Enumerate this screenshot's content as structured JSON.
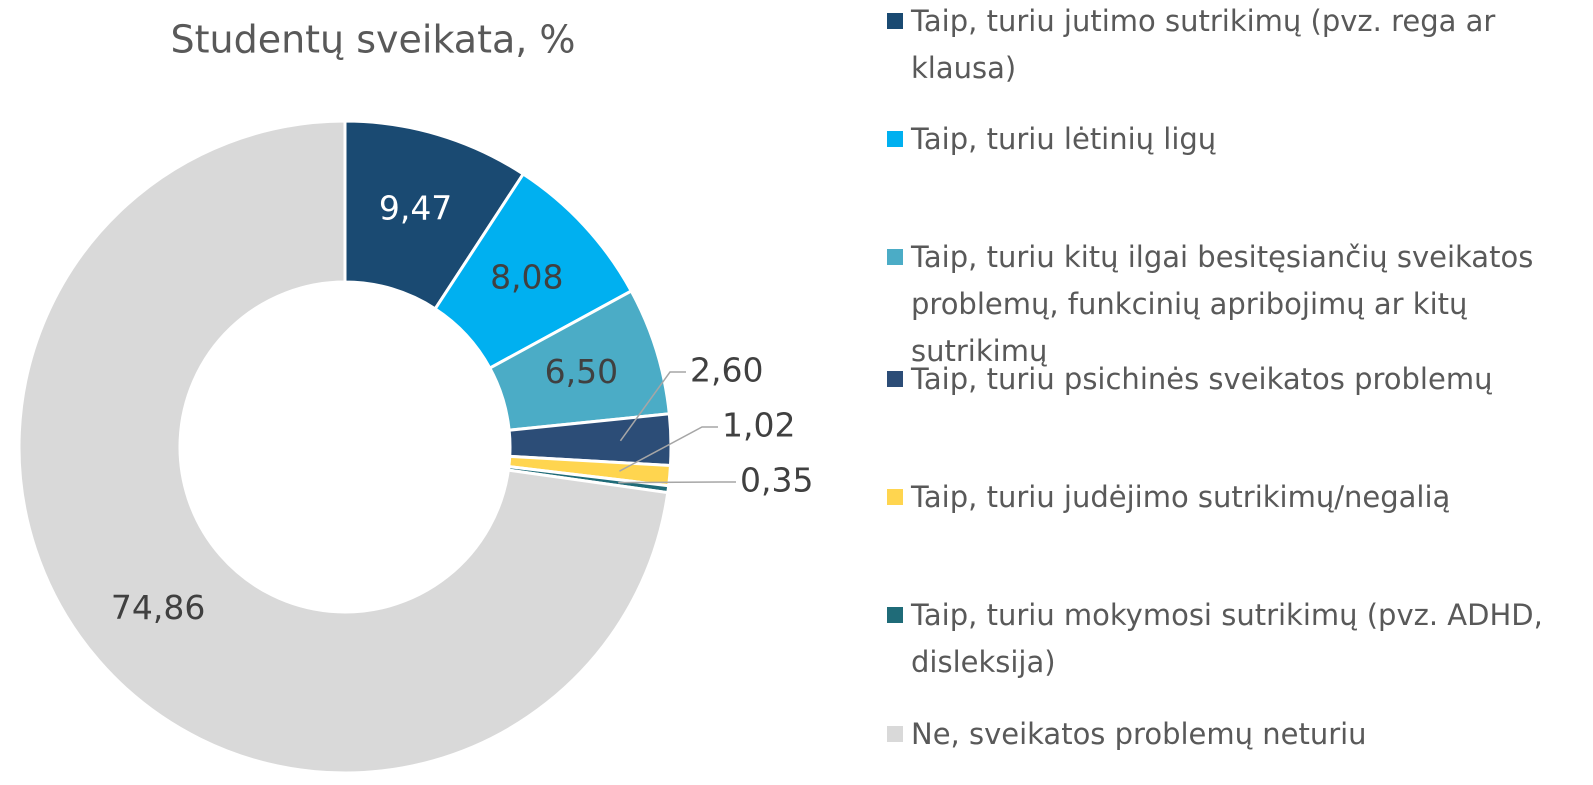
{
  "chart_data": {
    "type": "donut",
    "title": "Studentų sveikata, %",
    "categories": [
      "Taip, turiu jutimo sutrikimų (pvz. rega ar klausa)",
      "Taip, turiu lėtinių ligų",
      "Taip, turiu kitų ilgai besitęsiančių sveikatos problemų, funkcinių apribojimų ar kitų sutrikimų",
      "Taip, turiu psichinės sveikatos problemų",
      "Taip, turiu judėjimo sutrikimų/negalią",
      "Taip, turiu mokymosi sutrikimų (pvz. ADHD, disleksija)",
      "Ne, sveikatos problemų neturiu"
    ],
    "values": [
      9.47,
      8.08,
      6.5,
      2.6,
      1.02,
      0.35,
      74.86
    ],
    "value_labels": [
      "9,47",
      "8,08",
      "6,50",
      "2,60",
      "1,02",
      "0,35",
      "74,86"
    ],
    "colors": [
      "#1a4a72",
      "#00b0f0",
      "#4bacc6",
      "#2c4d77",
      "#ffd54f",
      "#1f6b78",
      "#d9d9d9"
    ],
    "legend": "right"
  }
}
